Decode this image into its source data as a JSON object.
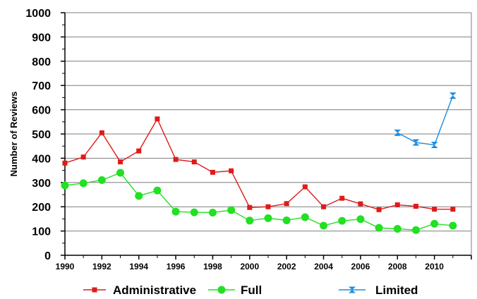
{
  "chart_data": {
    "type": "line",
    "ylabel": "Number of Reviews",
    "xlabel": "",
    "ylim": [
      0,
      1000
    ],
    "xlim": [
      1990,
      2012
    ],
    "yticks": [
      0,
      100,
      200,
      300,
      400,
      500,
      600,
      700,
      800,
      900,
      1000
    ],
    "xticks": [
      1990,
      1992,
      1994,
      1996,
      1998,
      2000,
      2002,
      2004,
      2006,
      2008,
      2010
    ],
    "grid": "horizontal",
    "legend_position": "bottom",
    "series": [
      {
        "name": "Administrative",
        "color": "#e01a1a",
        "marker": "square",
        "x": [
          1990,
          1991,
          1992,
          1993,
          1994,
          1995,
          1996,
          1997,
          1998,
          1999,
          2000,
          2001,
          2002,
          2003,
          2004,
          2005,
          2006,
          2007,
          2008,
          2009,
          2010,
          2011
        ],
        "values": [
          380,
          405,
          505,
          385,
          430,
          562,
          395,
          385,
          342,
          348,
          197,
          200,
          213,
          282,
          200,
          235,
          212,
          188,
          208,
          202,
          190,
          190
        ]
      },
      {
        "name": "Full",
        "color": "#22e022",
        "marker": "circle",
        "x": [
          1990,
          1991,
          1992,
          1993,
          1994,
          1995,
          1996,
          1997,
          1998,
          1999,
          2000,
          2001,
          2002,
          2003,
          2004,
          2005,
          2006,
          2007,
          2008,
          2009,
          2010,
          2011
        ],
        "values": [
          288,
          297,
          310,
          340,
          245,
          267,
          180,
          177,
          176,
          186,
          143,
          153,
          144,
          157,
          122,
          142,
          149,
          113,
          109,
          104,
          130,
          122
        ]
      },
      {
        "name": "Limited",
        "color": "#1a8de0",
        "marker": "hourglass",
        "x": [
          2008,
          2009,
          2010,
          2011
        ],
        "values": [
          505,
          465,
          455,
          658
        ]
      }
    ]
  }
}
